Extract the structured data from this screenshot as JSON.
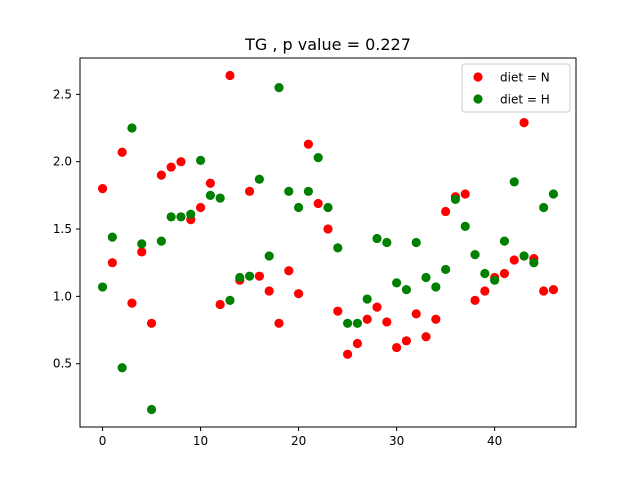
{
  "chart_data": {
    "type": "scatter",
    "title": "TG , p value = 0.227",
    "xlabel": "",
    "ylabel": "",
    "xlim": [
      -2.3,
      48.3
    ],
    "ylim": [
      0.03,
      2.77
    ],
    "xticks": [
      0,
      10,
      20,
      30,
      40
    ],
    "yticks": [
      0.5,
      1.0,
      1.5,
      2.0,
      2.5
    ],
    "xtick_labels": [
      "0",
      "10",
      "20",
      "30",
      "40"
    ],
    "ytick_labels": [
      "0.5",
      "1.0",
      "1.5",
      "2.0",
      "2.5"
    ],
    "grid": false,
    "legend_position": "top-right",
    "series": [
      {
        "name": "diet = N",
        "color": "#ff0000",
        "x": [
          0,
          1,
          2,
          3,
          4,
          5,
          6,
          7,
          8,
          9,
          10,
          11,
          12,
          13,
          14,
          15,
          16,
          17,
          18,
          19,
          20,
          21,
          22,
          23,
          24,
          25,
          26,
          27,
          28,
          29,
          30,
          31,
          32,
          33,
          34,
          35,
          36,
          37,
          38,
          39,
          40,
          41,
          42,
          43,
          44,
          45,
          46
        ],
        "y": [
          1.8,
          1.25,
          2.07,
          0.95,
          1.33,
          0.8,
          1.9,
          1.96,
          2.0,
          1.57,
          1.66,
          1.84,
          0.94,
          2.64,
          1.12,
          1.78,
          1.15,
          1.04,
          0.8,
          1.19,
          1.02,
          2.13,
          1.69,
          1.5,
          0.89,
          0.57,
          0.65,
          0.83,
          0.92,
          0.81,
          0.62,
          0.67,
          0.87,
          0.7,
          0.83,
          1.63,
          1.74,
          1.76,
          0.97,
          1.04,
          1.14,
          1.17,
          1.27,
          2.29,
          1.28,
          1.04,
          1.05
        ]
      },
      {
        "name": "diet = H",
        "color": "#008000",
        "x": [
          0,
          1,
          2,
          3,
          4,
          5,
          6,
          7,
          8,
          9,
          10,
          11,
          12,
          13,
          14,
          15,
          16,
          17,
          18,
          19,
          20,
          21,
          22,
          23,
          24,
          25,
          26,
          27,
          28,
          29,
          30,
          31,
          32,
          33,
          34,
          35,
          36,
          37,
          38,
          39,
          40,
          41,
          42,
          43,
          44,
          45,
          46
        ],
        "y": [
          1.07,
          1.44,
          0.47,
          2.25,
          1.39,
          0.16,
          1.41,
          1.59,
          1.59,
          1.61,
          2.01,
          1.75,
          1.73,
          0.97,
          1.14,
          1.15,
          1.87,
          1.3,
          2.55,
          1.78,
          1.66,
          1.78,
          2.03,
          1.66,
          1.36,
          0.8,
          0.8,
          0.98,
          1.43,
          1.4,
          1.1,
          1.05,
          1.4,
          1.14,
          1.07,
          1.2,
          1.72,
          1.52,
          1.31,
          1.17,
          1.12,
          1.41,
          1.85,
          1.3,
          1.25,
          1.66,
          1.76
        ]
      }
    ]
  }
}
